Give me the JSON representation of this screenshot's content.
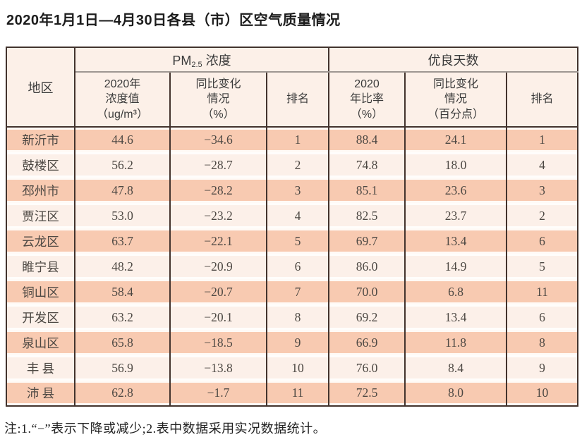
{
  "title": "2020年1月1日—4月30日各县（市）区空气质量情况",
  "table": {
    "header": {
      "region": "地区",
      "pm_group": {
        "prefix": "PM",
        "sub": "2.5",
        "suffix": " 浓度"
      },
      "good_group": "优良天数",
      "sub_headers": {
        "pm_value": "2020年\n浓度值\n（ug/m³）",
        "pm_change": "同比变化\n情况\n（%）",
        "pm_rank": "排名",
        "gd_ratio": "2020\n年比率\n（%）",
        "gd_change": "同比变化\n情况\n（百分点）",
        "gd_rank": "排名"
      }
    },
    "rows": [
      {
        "region": "新沂市",
        "pm_value": "44.6",
        "pm_change": "−34.6",
        "pm_rank": "1",
        "gd_ratio": "88.4",
        "gd_change": "24.1",
        "gd_rank": "1"
      },
      {
        "region": "鼓楼区",
        "pm_value": "56.2",
        "pm_change": "−28.7",
        "pm_rank": "2",
        "gd_ratio": "74.8",
        "gd_change": "18.0",
        "gd_rank": "4"
      },
      {
        "region": "邳州市",
        "pm_value": "47.8",
        "pm_change": "−28.2",
        "pm_rank": "3",
        "gd_ratio": "85.1",
        "gd_change": "23.6",
        "gd_rank": "3"
      },
      {
        "region": "贾汪区",
        "pm_value": "53.0",
        "pm_change": "−23.2",
        "pm_rank": "4",
        "gd_ratio": "82.5",
        "gd_change": "23.7",
        "gd_rank": "2"
      },
      {
        "region": "云龙区",
        "pm_value": "63.7",
        "pm_change": "−22.1",
        "pm_rank": "5",
        "gd_ratio": "69.7",
        "gd_change": "13.4",
        "gd_rank": "6"
      },
      {
        "region": "睢宁县",
        "pm_value": "48.2",
        "pm_change": "−20.9",
        "pm_rank": "6",
        "gd_ratio": "86.0",
        "gd_change": "14.9",
        "gd_rank": "5"
      },
      {
        "region": "铜山区",
        "pm_value": "58.4",
        "pm_change": "−20.7",
        "pm_rank": "7",
        "gd_ratio": "70.0",
        "gd_change": "6.8",
        "gd_rank": "11"
      },
      {
        "region": "开发区",
        "pm_value": "63.2",
        "pm_change": "−20.1",
        "pm_rank": "8",
        "gd_ratio": "69.2",
        "gd_change": "13.4",
        "gd_rank": "6"
      },
      {
        "region": "泉山区",
        "pm_value": "65.8",
        "pm_change": "−18.5",
        "pm_rank": "9",
        "gd_ratio": "66.9",
        "gd_change": "11.8",
        "gd_rank": "8"
      },
      {
        "region": "丰 县",
        "pm_value": "56.9",
        "pm_change": "−13.8",
        "pm_rank": "10",
        "gd_ratio": "76.0",
        "gd_change": "8.4",
        "gd_rank": "9"
      },
      {
        "region": "沛 县",
        "pm_value": "62.8",
        "pm_change": "−1.7",
        "pm_rank": "11",
        "gd_ratio": "72.5",
        "gd_change": "8.0",
        "gd_rank": "10"
      }
    ]
  },
  "footnote": "注:1.“−”表示下降或减少;2.表中数据采用实况数据统计。",
  "colors": {
    "row_salmon": "#f8cab1",
    "row_cream": "#fcf0e9",
    "header_bg": "#fcf0e8",
    "border_dark": "#43332d",
    "border_gray": "#9e9792"
  }
}
